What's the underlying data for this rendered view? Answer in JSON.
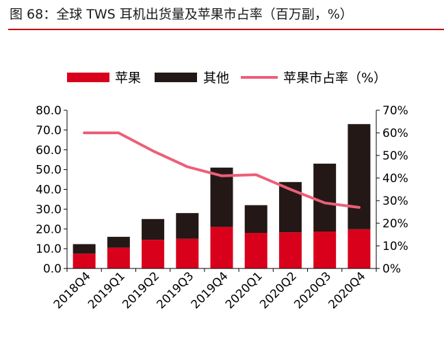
{
  "figure": {
    "title": "图 68：全球 TWS 耳机出货量及苹果市占率（百万副，%）"
  },
  "colors": {
    "apple": "#d9001b",
    "other": "#231815",
    "share_line": "#ec5f78",
    "title_rule": "#c00000"
  },
  "chart_data": {
    "type": "bar",
    "stacked": true,
    "categories": [
      "2018Q4",
      "2019Q1",
      "2019Q2",
      "2019Q3",
      "2019Q4",
      "2020Q1",
      "2020Q2",
      "2020Q3",
      "2020Q4"
    ],
    "series": [
      {
        "name": "苹果",
        "type": "bar",
        "axis": "left",
        "values": [
          7.5,
          10.5,
          14.5,
          15.0,
          21.0,
          18.0,
          18.3,
          18.7,
          19.8
        ]
      },
      {
        "name": "其他",
        "type": "bar",
        "axis": "left",
        "values": [
          4.8,
          5.5,
          10.5,
          13.0,
          30.0,
          14.0,
          25.4,
          34.3,
          53.2
        ]
      },
      {
        "name": "苹果市占率（%）",
        "type": "line",
        "axis": "right",
        "values": [
          60,
          60,
          52,
          45,
          41,
          41.5,
          35,
          29,
          27
        ]
      }
    ],
    "y_left": {
      "ylim": [
        0,
        80
      ],
      "ticks": [
        "0.0",
        "10.0",
        "20.0",
        "30.0",
        "40.0",
        "50.0",
        "60.0",
        "70.0",
        "80.0"
      ]
    },
    "y_right": {
      "ylim": [
        0,
        70
      ],
      "ticks": [
        "0%",
        "10%",
        "20%",
        "30%",
        "40%",
        "50%",
        "60%",
        "70%"
      ]
    },
    "grid": false,
    "legend_position": "top"
  }
}
